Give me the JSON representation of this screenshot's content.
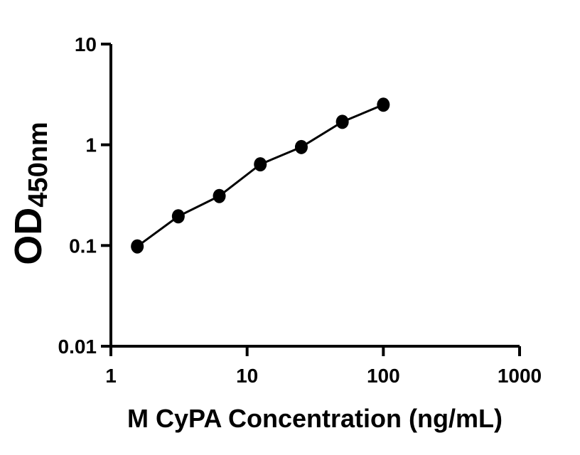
{
  "chart_data": {
    "type": "line",
    "x_scale": "log",
    "y_scale": "log",
    "x": [
      1.563,
      3.125,
      6.25,
      12.5,
      25,
      50,
      100
    ],
    "y": [
      0.098,
      0.195,
      0.31,
      0.64,
      0.95,
      1.69,
      2.5
    ],
    "xlabel": "M CyPA Concentration (ng/mL)",
    "ylabel_main": "OD",
    "ylabel_sub": "450nm",
    "x_ticks": [
      "1",
      "10",
      "100",
      "1000"
    ],
    "y_ticks": [
      "10",
      "1",
      "0.1",
      "0.01"
    ],
    "xlim": [
      1,
      1000
    ],
    "ylim": [
      0.01,
      10
    ],
    "grid": false,
    "legend": "none",
    "marker": "filled-circle",
    "colors": {
      "line": "#000000",
      "marker": "#000000",
      "axis": "#000000",
      "background": "#ffffff"
    }
  }
}
